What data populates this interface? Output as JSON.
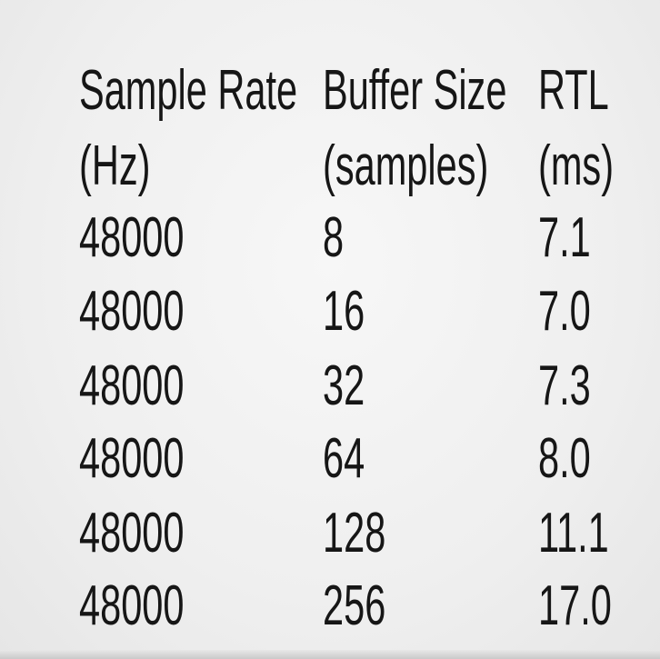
{
  "table": {
    "columns": [
      {
        "title": "Sample Rate",
        "unit": "(Hz)"
      },
      {
        "title": "Buffer Size",
        "unit": "(samples)"
      },
      {
        "title": "RTL",
        "unit": "(ms)"
      }
    ],
    "rows": [
      [
        "48000",
        "8",
        "7.1"
      ],
      [
        "48000",
        "16",
        "7.0"
      ],
      [
        "48000",
        "32",
        "7.3"
      ],
      [
        "48000",
        "64",
        "8.0"
      ],
      [
        "48000",
        "128",
        "11.1"
      ],
      [
        "48000",
        "256",
        "17.0"
      ]
    ]
  }
}
